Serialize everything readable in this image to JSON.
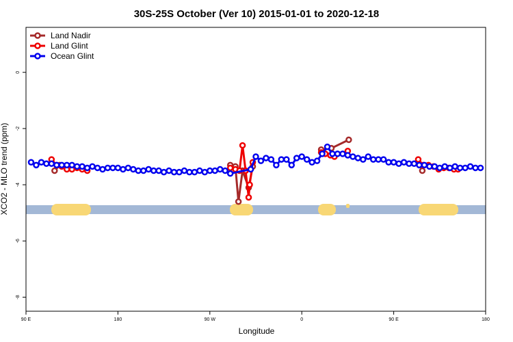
{
  "chart_data": {
    "type": "line",
    "title": "30S-25S October (Ver 10)   2015-01-01 to 2020-12-18",
    "x_label": "Longitude",
    "y_label": "XCO2 - MLO trend (ppm)",
    "xlim": [
      90,
      540
    ],
    "ylim": [
      -8.5,
      1.6
    ],
    "xticks": [
      {
        "value": 90,
        "label": "90 E"
      },
      180,
      {
        "value": 270,
        "label": "90 W"
      },
      {
        "value": 360,
        "label": "0"
      },
      {
        "value": 450,
        "label": "90 E"
      },
      {
        "value": 540,
        "label": "180"
      }
    ],
    "yticks": [
      0,
      -2,
      -4,
      -6,
      -8
    ],
    "legend": "top-left",
    "series": [
      {
        "name": "Land Nadir",
        "color": "#a52a2a",
        "x": [
          118,
          123,
          200,
          290,
          295,
          298,
          302,
          308,
          312,
          350,
          379,
          389,
          406,
          420,
          478
        ],
        "values": [
          -3.5,
          -3.3,
          null,
          -3.3,
          -3.35,
          -4.6,
          -3.5,
          -4.1,
          -3.35,
          null,
          -2.75,
          -2.7,
          -2.4,
          null,
          -3.5
        ]
      },
      {
        "name": "Land Glint",
        "color": "#ee0000",
        "x": [
          115,
          120,
          125,
          130,
          135,
          140,
          145,
          150,
          200,
          290,
          295,
          299,
          302,
          305,
          308,
          309,
          312,
          350,
          379,
          383,
          388,
          392,
          405,
          440,
          474,
          479,
          484,
          489,
          494,
          499,
          504,
          509,
          513
        ],
        "values": [
          -3.1,
          -3.3,
          -3.35,
          -3.45,
          -3.45,
          -3.4,
          -3.45,
          -3.5,
          null,
          -3.4,
          -3.45,
          -3.5,
          -2.6,
          -3.5,
          -4.45,
          -4.0,
          -3.2,
          null,
          -2.85,
          -2.9,
          -2.95,
          -3.0,
          -2.8,
          null,
          -3.1,
          -3.3,
          -3.3,
          -3.35,
          -3.45,
          -3.4,
          -3.4,
          -3.45,
          -3.45
        ]
      },
      {
        "name": "Ocean Glint",
        "color": "#0000ee",
        "x": [
          95,
          100,
          105,
          110,
          115,
          120,
          125,
          130,
          135,
          140,
          145,
          150,
          155,
          160,
          165,
          170,
          175,
          180,
          185,
          190,
          195,
          200,
          205,
          210,
          215,
          220,
          225,
          230,
          235,
          240,
          245,
          250,
          255,
          260,
          265,
          270,
          275,
          280,
          285,
          290,
          310,
          315,
          320,
          325,
          330,
          335,
          340,
          345,
          350,
          355,
          360,
          365,
          370,
          375,
          380,
          385,
          390,
          395,
          400,
          405,
          410,
          415,
          420,
          425,
          430,
          435,
          440,
          445,
          450,
          455,
          460,
          465,
          470,
          475,
          480,
          485,
          490,
          495,
          500,
          505,
          510,
          515,
          520,
          525,
          530,
          535
        ],
        "values": [
          -3.2,
          -3.3,
          -3.2,
          -3.25,
          -3.25,
          -3.3,
          -3.3,
          -3.3,
          -3.3,
          -3.35,
          -3.35,
          -3.4,
          -3.35,
          -3.4,
          -3.45,
          -3.4,
          -3.4,
          -3.4,
          -3.45,
          -3.4,
          -3.45,
          -3.5,
          -3.5,
          -3.45,
          -3.5,
          -3.5,
          -3.55,
          -3.5,
          -3.55,
          -3.55,
          -3.5,
          -3.55,
          -3.55,
          -3.5,
          -3.55,
          -3.5,
          -3.5,
          -3.45,
          -3.5,
          -3.6,
          -3.45,
          -3.0,
          -3.15,
          -3.05,
          -3.1,
          -3.3,
          -3.1,
          -3.1,
          -3.3,
          -3.05,
          -3.0,
          -3.1,
          -3.2,
          -3.15,
          -2.9,
          -2.65,
          -2.9,
          -2.9,
          -2.9,
          -2.95,
          -3.0,
          -3.05,
          -3.1,
          -3.0,
          -3.1,
          -3.1,
          -3.1,
          -3.2,
          -3.2,
          -3.25,
          -3.2,
          -3.25,
          -3.25,
          -3.3,
          -3.3,
          -3.35,
          -3.35,
          -3.4,
          -3.35,
          -3.4,
          -3.35,
          -3.4,
          -3.4,
          -3.35,
          -3.4,
          -3.4
        ]
      }
    ]
  }
}
